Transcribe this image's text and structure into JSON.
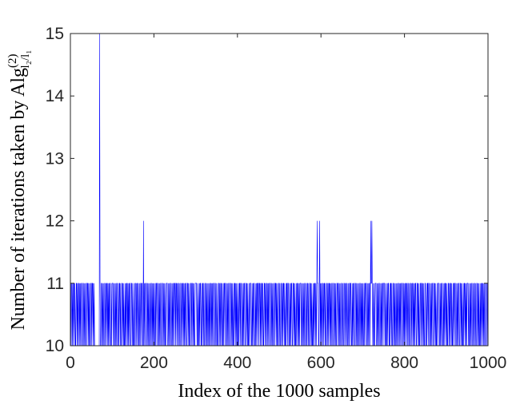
{
  "chart_data": {
    "type": "line",
    "xlabel": "Index of the 1000 samples",
    "ylabel": {
      "text": "Number of iterations taken by Alg",
      "superscript": "(2)",
      "subscript": "l₂/l₁"
    },
    "xlim": [
      0,
      1000
    ],
    "xticks": [
      0,
      200,
      400,
      600,
      800,
      1000
    ],
    "ylim": [
      10,
      15
    ],
    "yticks": [
      10,
      11,
      12,
      13,
      14,
      15
    ],
    "series": [
      {
        "color": "#0000ff",
        "values": [
          11,
          10,
          11,
          11,
          10,
          11,
          10,
          11,
          11,
          10,
          11,
          10,
          10,
          11,
          11,
          10,
          11,
          10,
          11,
          11,
          10,
          11,
          10,
          11,
          10,
          11,
          11,
          10,
          10,
          11,
          11,
          10,
          11,
          10,
          11,
          10,
          10,
          11,
          11,
          10,
          11,
          11,
          10,
          11,
          10,
          11,
          10,
          10,
          11,
          11,
          10,
          11,
          11,
          10,
          11,
          10,
          11,
          10,
          10,
          10,
          10,
          10,
          10,
          10,
          10,
          10,
          10,
          10,
          10,
          15,
          11,
          10,
          10,
          11,
          11,
          10,
          11,
          10,
          11,
          10,
          10,
          11,
          11,
          10,
          11,
          10,
          11,
          11,
          10,
          11,
          10,
          11,
          10,
          11,
          11,
          10,
          10,
          11,
          10,
          11,
          11,
          11,
          10,
          11,
          10,
          10,
          11,
          10,
          11,
          10,
          11,
          11,
          10,
          10,
          11,
          10,
          11,
          11,
          10,
          11,
          10,
          10,
          11,
          11,
          10,
          11,
          10,
          11,
          10,
          10,
          11,
          10,
          11,
          10,
          11,
          11,
          10,
          11,
          10,
          11,
          10,
          11,
          11,
          10,
          10,
          11,
          11,
          10,
          11,
          10,
          10,
          11,
          10,
          10,
          11,
          11,
          10,
          11,
          10,
          11,
          11,
          10,
          11,
          10,
          10,
          11,
          10,
          11,
          11,
          10,
          11,
          11,
          10,
          10,
          12,
          10,
          11,
          10,
          11,
          11,
          10,
          10,
          11,
          11,
          10,
          11,
          10,
          11,
          10,
          10,
          11,
          10,
          11,
          11,
          10,
          11,
          10,
          11,
          10,
          11,
          10,
          10,
          11,
          10,
          11,
          11,
          10,
          11,
          11,
          10,
          10,
          11,
          10,
          11,
          10,
          11,
          11,
          10,
          10,
          11,
          11,
          10,
          11,
          10,
          11,
          10,
          10,
          11,
          10,
          11,
          11,
          11,
          10,
          10,
          11,
          10,
          11,
          10,
          11,
          11,
          10,
          10,
          11,
          10,
          11,
          10,
          11,
          11,
          10,
          11,
          11,
          10,
          11,
          11,
          10,
          11,
          10,
          11,
          11,
          10,
          11,
          10,
          10,
          11,
          11,
          10,
          11,
          10,
          11,
          11,
          10,
          11,
          10,
          11,
          10,
          11,
          11,
          10,
          10,
          11,
          11,
          10,
          11,
          10,
          11,
          10,
          10,
          11,
          11,
          10,
          11,
          11,
          10,
          11,
          10,
          11,
          10,
          10,
          11,
          11,
          11,
          11,
          10,
          11,
          10,
          10,
          11,
          10,
          11,
          10,
          11,
          11,
          10,
          10,
          11,
          10,
          11,
          11,
          10,
          11,
          10,
          10,
          11,
          11,
          10,
          11,
          10,
          11,
          10,
          10,
          11,
          10,
          11,
          10,
          11,
          11,
          10,
          11,
          10,
          11,
          10,
          11,
          11,
          10,
          10,
          11,
          11,
          10,
          11,
          10,
          10,
          11,
          10,
          10,
          11,
          11,
          10,
          11,
          10,
          11,
          11,
          10,
          11,
          10,
          10,
          11,
          10,
          11,
          11,
          10,
          11,
          11,
          10,
          10,
          11,
          10,
          11,
          10,
          11,
          11,
          10,
          10,
          11,
          11,
          10,
          11,
          10,
          11,
          10,
          10,
          11,
          10,
          11,
          11,
          10,
          11,
          10,
          11,
          10,
          11,
          10,
          10,
          11,
          10,
          11,
          11,
          10,
          11,
          11,
          10,
          10,
          11,
          10,
          11,
          10,
          11,
          11,
          10,
          10,
          11,
          11,
          10,
          11,
          10,
          11,
          10,
          10,
          11,
          10,
          11,
          11,
          11,
          10,
          10,
          11,
          10,
          11,
          10,
          11,
          11,
          10,
          10,
          11,
          10,
          11,
          10,
          11,
          11,
          10,
          11,
          11,
          10,
          11,
          11,
          10,
          11,
          10,
          11,
          11,
          10,
          11,
          10,
          10,
          11,
          11,
          10,
          11,
          10,
          11,
          11,
          10,
          11,
          10,
          11,
          10,
          11,
          11,
          10,
          10,
          11,
          11,
          10,
          11,
          10,
          11,
          10,
          10,
          11,
          11,
          10,
          11,
          11,
          10,
          11,
          10,
          11,
          10,
          10,
          11,
          11,
          10,
          11,
          10,
          10,
          11,
          11,
          10,
          11,
          10,
          11,
          11,
          10,
          11,
          10,
          10,
          11,
          10,
          11,
          11,
          10,
          11,
          11,
          10,
          10,
          11,
          10,
          11,
          10,
          11,
          11,
          10,
          10,
          11,
          11,
          10,
          11,
          10,
          11,
          10,
          10,
          11,
          10,
          11,
          11,
          10,
          11,
          10,
          11,
          10,
          11,
          11,
          11,
          10,
          11,
          10,
          10,
          11,
          10,
          11,
          10,
          11,
          11,
          10,
          10,
          11,
          10,
          11,
          11,
          10,
          11,
          10,
          10,
          11,
          11,
          10,
          11,
          10,
          11,
          10,
          10,
          11,
          10,
          11,
          10,
          11,
          11,
          10,
          11,
          10,
          11,
          12,
          11,
          11,
          10,
          10,
          11,
          12,
          10,
          11,
          10,
          11,
          10,
          11,
          11,
          10,
          11,
          10,
          11,
          11,
          10,
          11,
          10,
          10,
          11,
          11,
          10,
          11,
          10,
          11,
          11,
          10,
          11,
          10,
          11,
          10,
          11,
          11,
          10,
          10,
          11,
          11,
          10,
          11,
          10,
          11,
          10,
          10,
          11,
          11,
          10,
          11,
          11,
          10,
          11,
          10,
          11,
          10,
          10,
          11,
          11,
          10,
          11,
          10,
          10,
          11,
          11,
          10,
          11,
          10,
          11,
          11,
          10,
          11,
          10,
          10,
          11,
          10,
          11,
          11,
          10,
          11,
          11,
          10,
          10,
          11,
          10,
          11,
          10,
          11,
          11,
          10,
          10,
          11,
          11,
          10,
          11,
          10,
          11,
          10,
          10,
          11,
          10,
          11,
          11,
          10,
          11,
          10,
          11,
          10,
          11,
          10,
          10,
          11,
          10,
          11,
          11,
          10,
          11,
          11,
          10,
          10,
          11,
          10,
          11,
          10,
          11,
          11,
          10,
          12,
          11,
          11,
          12,
          11,
          10,
          11,
          10,
          10,
          11,
          10,
          11,
          11,
          11,
          10,
          10,
          11,
          10,
          11,
          10,
          11,
          11,
          10,
          10,
          11,
          10,
          11,
          10,
          11,
          11,
          10,
          11,
          11,
          11,
          10,
          11,
          10,
          10,
          11,
          10,
          11,
          10,
          11,
          11,
          10,
          10,
          11,
          10,
          11,
          11,
          10,
          11,
          10,
          10,
          11,
          11,
          10,
          11,
          10,
          11,
          10,
          10,
          11,
          10,
          11,
          10,
          11,
          11,
          10,
          11,
          10,
          11,
          10,
          11,
          11,
          10,
          10,
          11,
          11,
          10,
          11,
          10,
          11,
          10,
          11,
          11,
          10,
          11,
          10,
          11,
          11,
          10,
          11,
          10,
          10,
          11,
          11,
          10,
          11,
          10,
          11,
          11,
          10,
          11,
          10,
          11,
          10,
          11,
          11,
          10,
          10,
          11,
          11,
          10,
          11,
          10,
          11,
          10,
          10,
          11,
          11,
          10,
          11,
          11,
          10,
          11,
          10,
          11,
          10,
          10,
          11,
          11,
          10,
          10,
          11,
          10,
          11,
          11,
          10,
          11,
          11,
          10,
          10,
          11,
          10,
          11,
          10,
          11,
          11,
          10,
          10,
          11,
          11,
          10,
          11,
          10,
          11,
          10,
          10,
          11,
          10,
          11,
          11,
          11,
          10,
          10,
          11,
          10,
          11,
          10,
          11,
          11,
          10,
          10,
          11,
          10,
          11,
          10,
          11,
          11,
          10,
          11,
          10,
          11,
          10,
          10,
          11,
          11,
          10,
          11,
          10,
          11,
          11,
          10,
          11,
          10,
          10,
          11,
          10,
          11,
          11,
          10,
          11,
          11,
          10,
          10,
          11,
          10,
          11,
          10,
          11,
          11,
          10,
          10,
          11,
          11,
          10,
          11,
          10,
          11,
          10,
          10,
          11,
          10,
          11,
          11,
          10,
          11,
          10,
          11,
          10,
          11,
          11,
          11,
          10,
          11,
          10,
          10,
          11,
          10,
          11,
          10,
          11,
          11,
          10,
          10,
          11,
          10,
          11,
          11,
          10,
          11,
          10,
          10,
          11,
          11,
          10,
          11,
          10,
          11,
          10,
          10,
          11,
          10,
          11,
          10,
          11,
          11,
          10,
          11,
          10,
          11,
          10,
          11,
          11,
          10,
          10,
          11,
          11,
          10,
          11,
          10
        ]
      }
    ]
  }
}
